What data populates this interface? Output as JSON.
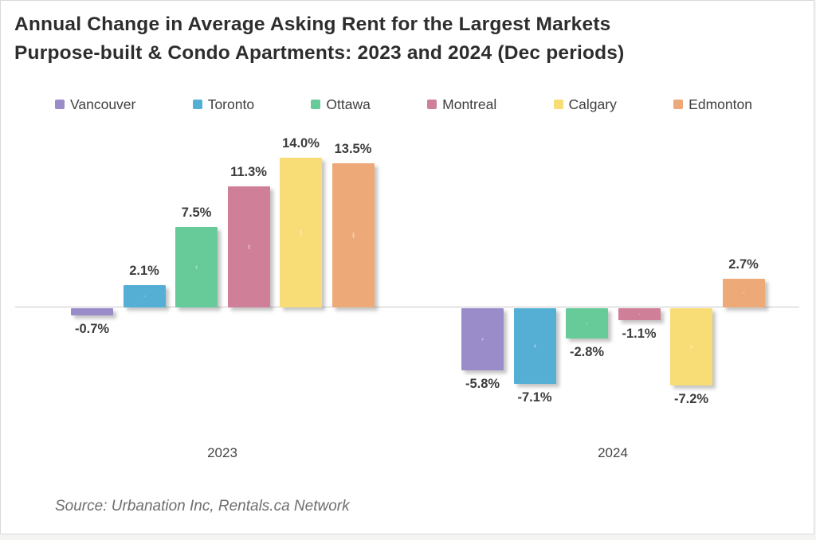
{
  "title_line1": "Annual Change in Average Asking Rent for the Largest Markets",
  "title_line2": "Purpose-built & Condo Apartments: 2023 and 2024 (Dec periods)",
  "source": "Source: Urbanation Inc, Rentals.ca Network",
  "chart_data": {
    "type": "bar",
    "title": "Annual Change in Average Asking Rent for the Largest Markets Purpose-built & Condo Apartments: 2023 and 2024 (Dec periods)",
    "categories": [
      "2023",
      "2024"
    ],
    "series": [
      {
        "name": "Vancouver",
        "color": "#9a8bc9",
        "values": [
          -0.7,
          -5.8
        ]
      },
      {
        "name": "Toronto",
        "color": "#55afd4",
        "values": [
          2.1,
          -7.1
        ]
      },
      {
        "name": "Ottawa",
        "color": "#66cb98",
        "values": [
          7.5,
          -2.8
        ]
      },
      {
        "name": "Montreal",
        "color": "#cf7f97",
        "values": [
          11.3,
          -1.1
        ]
      },
      {
        "name": "Calgary",
        "color": "#f8dc75",
        "values": [
          14.0,
          -7.2
        ]
      },
      {
        "name": "Edmonton",
        "color": "#edaa78",
        "values": [
          13.5,
          2.7
        ]
      }
    ],
    "value_label_format": "0.0%",
    "ylim": [
      -8.5,
      15
    ],
    "grid": false,
    "legend_position": "top",
    "xlabel": "",
    "ylabel": "",
    "source": "Source: Urbanation Inc, Rentals.ca Network"
  }
}
